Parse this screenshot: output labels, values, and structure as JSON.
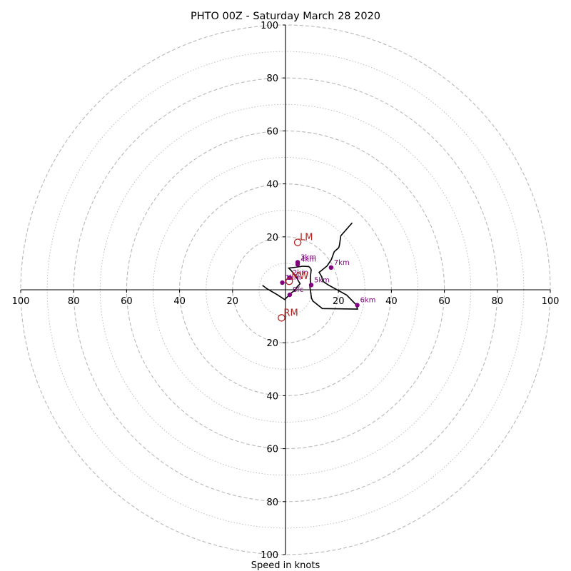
{
  "chart_data": {
    "type": "line",
    "title": "PHTO 00Z - Saturday March 28 2020",
    "xlabel": "Speed in knots",
    "ylabel": "",
    "xlim": [
      -100,
      100
    ],
    "ylim": [
      -100,
      100
    ],
    "ring_major": [
      20,
      40,
      60,
      80,
      100
    ],
    "ring_minor": [
      10,
      30,
      50,
      70,
      90
    ],
    "x_ticks": [
      "100",
      "80",
      "60",
      "40",
      "20",
      "20",
      "40",
      "60",
      "80",
      "100"
    ],
    "y_ticks": [
      "100",
      "80",
      "60",
      "40",
      "20",
      "20",
      "40",
      "60",
      "80",
      "100"
    ],
    "hodograph": {
      "x": [
        -8.7,
        -7,
        -3.2,
        -0.3,
        2.3,
        3.6,
        4.5,
        4.8,
        5.5,
        3.8,
        2.2,
        1.2,
        3.7,
        6.5,
        8.8,
        9.5,
        9.7,
        9.5,
        9.4,
        9.5,
        9.2,
        9.8,
        10.3,
        13.9,
        27.2,
        26.7,
        23.1,
        16.2,
        14.1,
        13.7,
        12.7,
        13.5,
        15.7,
        17.3,
        18.4,
        20.1,
        20.4,
        20.9,
        25.2
      ],
      "y": [
        1.7,
        0.4,
        -1.8,
        -3.7,
        -1.1,
        -0.2,
        1.3,
        1.5,
        2.3,
        5.2,
        7.2,
        8.2,
        8.5,
        8.9,
        8.8,
        8.1,
        7.5,
        5.7,
        4.1,
        2.3,
        1.2,
        -3.1,
        -4.2,
        -7.1,
        -7.3,
        -5.7,
        -2.0,
        1.8,
        3.2,
        4.9,
        6.6,
        7.2,
        9.0,
        11.4,
        14.4,
        15.9,
        17.0,
        20.4,
        25.3
      ]
    },
    "height_markers": [
      {
        "label": "Sfc",
        "x": 1.6,
        "y": -1.9
      },
      {
        "label": "1km",
        "x": -1.2,
        "y": 2.7
      },
      {
        "label": "2km",
        "x": 1.6,
        "y": 4.6
      },
      {
        "label": "3km",
        "x": 4.6,
        "y": 10.4
      },
      {
        "label": "4km",
        "x": 4.6,
        "y": 9.6
      },
      {
        "label": "5km",
        "x": 9.7,
        "y": 1.8
      },
      {
        "label": "6km",
        "x": 27.1,
        "y": -5.8
      },
      {
        "label": "7km",
        "x": 17.2,
        "y": 8.4
      }
    ],
    "motion_markers": [
      {
        "label": "LM",
        "x": 4.6,
        "y": 17.9
      },
      {
        "label": "RM",
        "x": -1.5,
        "y": -10.6
      },
      {
        "label": "MW",
        "x": 1.4,
        "y": 3.2
      }
    ],
    "colors": {
      "hodograph": "#000000",
      "height_marker": "#800080",
      "motion_marker": "#b22222",
      "grid": "#b8b8b8"
    }
  }
}
